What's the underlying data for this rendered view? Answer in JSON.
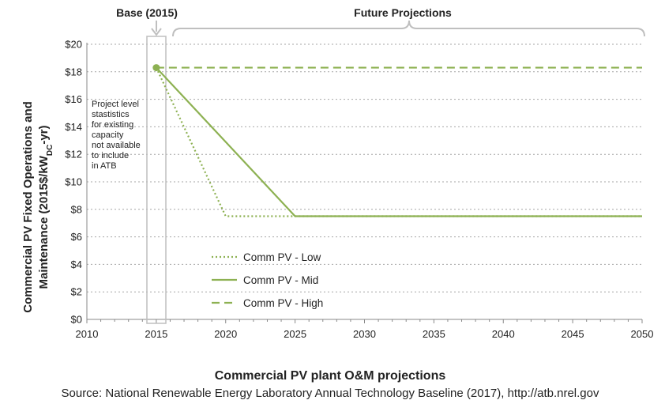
{
  "chart_data": {
    "type": "line",
    "title": "Commercial PV plant O&M projections",
    "ylabel_line1": "Commercial PV Fixed Operations and",
    "ylabel_line2_pre": "Maintenance  (2015$/kW",
    "ylabel_line2_sub": "DC",
    "ylabel_line2_post": "-yr)",
    "xlim": [
      2010,
      2050
    ],
    "ylim": [
      0,
      20
    ],
    "x_ticks": [
      2010,
      2015,
      2020,
      2025,
      2030,
      2035,
      2040,
      2045,
      2050
    ],
    "y_ticks": [
      0,
      2,
      4,
      6,
      8,
      10,
      12,
      14,
      16,
      18,
      20
    ],
    "y_tick_labels": [
      "$0",
      "$2",
      "$4",
      "$6",
      "$8",
      "$10",
      "$12",
      "$14",
      "$16",
      "$18",
      "$20"
    ],
    "x_tick_labels": [
      "2010",
      "2015",
      "2020",
      "2025",
      "2030",
      "2035",
      "2040",
      "2045",
      "2050"
    ],
    "grid": "horizontal dashed",
    "base_point": {
      "x": 2015,
      "y": 18.3
    },
    "series": [
      {
        "name": "Comm PV - Low",
        "style": "dotted",
        "color": "#8db152",
        "x": [
          2015,
          2020,
          2025,
          2030,
          2035,
          2040,
          2045,
          2050
        ],
        "y": [
          18.3,
          7.5,
          7.5,
          7.5,
          7.5,
          7.5,
          7.5,
          7.5
        ]
      },
      {
        "name": "Comm PV - Mid",
        "style": "solid",
        "color": "#8db152",
        "x": [
          2015,
          2020,
          2025,
          2030,
          2035,
          2040,
          2045,
          2050
        ],
        "y": [
          18.3,
          12.9,
          7.5,
          7.5,
          7.5,
          7.5,
          7.5,
          7.5
        ]
      },
      {
        "name": "Comm PV - High",
        "style": "dashed",
        "color": "#8db152",
        "x": [
          2015,
          2050
        ],
        "y": [
          18.3,
          18.3
        ]
      }
    ],
    "legend_position": "lower-left",
    "annotations": {
      "base_label": "Base (2015)",
      "future_label": "Future Projections",
      "note_lines": [
        "Project level",
        "stastistics",
        "for existing",
        "capacity",
        "not available",
        "to include",
        "in ATB"
      ]
    },
    "source": "Source:  National Renewable Energy Laboratory Annual Technology Baseline (2017), http://atb.nrel.gov"
  }
}
